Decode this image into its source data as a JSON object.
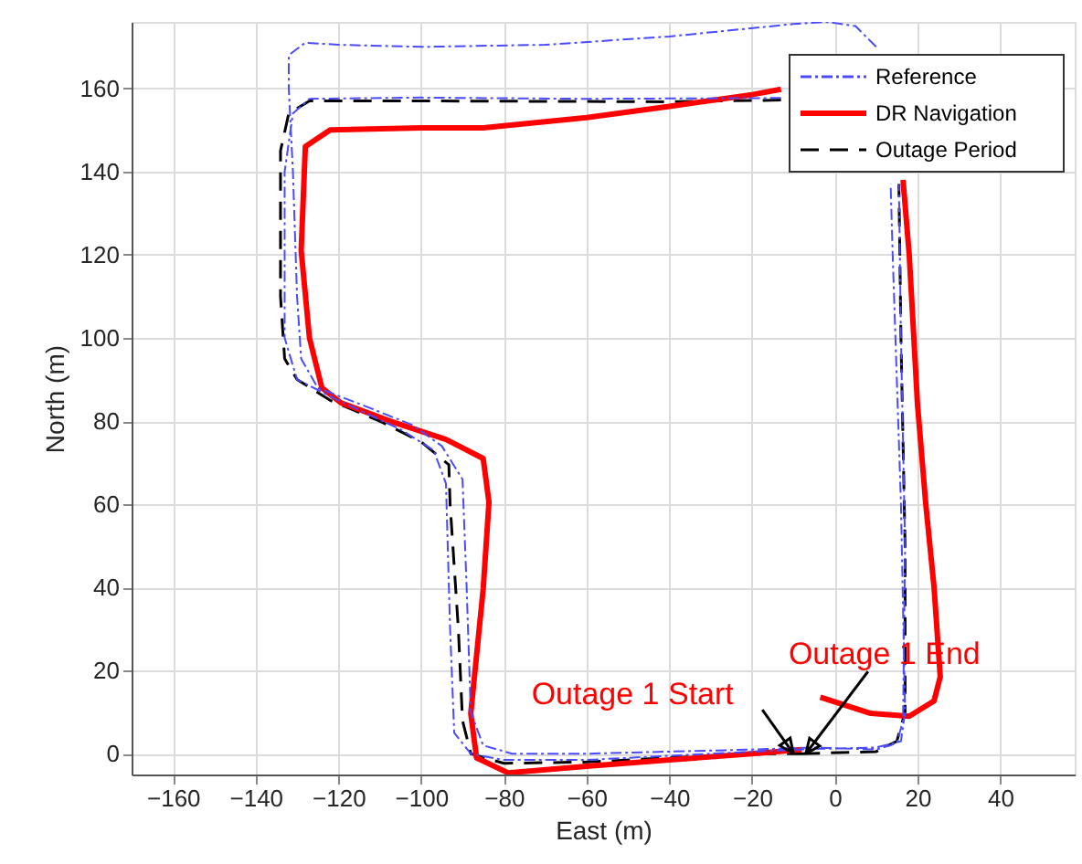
{
  "chart_data": {
    "type": "line",
    "xlabel": "East (m)",
    "ylabel": "North (m)",
    "xlim": [
      -170,
      58
    ],
    "ylim": [
      -5,
      176
    ],
    "xticks": [
      -160,
      -140,
      -120,
      -100,
      -80,
      -60,
      -40,
      -20,
      0,
      20,
      40
    ],
    "yticks": [
      0,
      20,
      40,
      60,
      80,
      100,
      120,
      140,
      160
    ],
    "grid": true,
    "legend": "top right",
    "marker": "none",
    "series": [
      {
        "name": "Reference",
        "color": "#4a4aff",
        "line_style": "dashdot",
        "x": [
          -10,
          10,
          16,
          17,
          16,
          14,
          13.5,
          12,
          10,
          5,
          -2,
          -10,
          -40,
          -70,
          -100,
          -120,
          -128,
          -132,
          -132,
          -131,
          -130,
          -129,
          -125,
          -112,
          -102,
          -95,
          -90,
          -89,
          -88,
          -85,
          -78,
          -60,
          -40,
          -20,
          -5,
          10,
          15,
          16.5,
          17,
          16,
          15.5,
          14,
          -13,
          -60,
          -100,
          -127,
          -131,
          -133,
          -133,
          -130,
          -120,
          -105,
          -97,
          -94,
          -93,
          -92,
          -88,
          -80,
          -60,
          -40,
          -20,
          -8
        ],
        "values": [
          1,
          1.5,
          3,
          10,
          60,
          120,
          137,
          null,
          170,
          175,
          176,
          175.5,
          172.5,
          170.5,
          170,
          170.5,
          171,
          168,
          160,
          140,
          110,
          95,
          88,
          83,
          79,
          74,
          66,
          40,
          10,
          2,
          0,
          0,
          0.5,
          1,
          1.5,
          1,
          2.5,
          8,
          50,
          100,
          137,
          null,
          157.7,
          157.5,
          157.8,
          157.5,
          154,
          140,
          100,
          90,
          85,
          78,
          73,
          65,
          30,
          5,
          0,
          -1.5,
          -1.5,
          -0.5,
          0.5,
          1
        ]
      },
      {
        "name": "DR Navigation",
        "color": "#ff0000",
        "line_style": "solid",
        "x": [
          -8,
          -20,
          -40,
          -60,
          -79,
          -86.6,
          -88,
          -85,
          -83.6,
          -85,
          -94,
          -107.5,
          -119.4,
          -124,
          -127,
          -129,
          -128,
          -122,
          -100,
          -85,
          -60,
          -40,
          -20,
          -13,
          5,
          14,
          15,
          16.5,
          18,
          20,
          22,
          24,
          25.5,
          24,
          18,
          8.7,
          -3.5
        ],
        "values": [
          1,
          0,
          -1.5,
          -3,
          -4.6,
          -1,
          9.7,
          39.6,
          60.5,
          71,
          75.6,
          80,
          84.4,
          88,
          100,
          121,
          146,
          150,
          150.5,
          150.5,
          153,
          155.7,
          158.5,
          159.8,
          null,
          null,
          null,
          138,
          120,
          84,
          60,
          40,
          18.5,
          12.7,
          9,
          9.7,
          13.6
        ]
      },
      {
        "name": "Outage Period",
        "color": "#000000",
        "line_style": "dashed",
        "x": [
          -8,
          10,
          15,
          17,
          17,
          16,
          15.5,
          14,
          -13,
          -40,
          -100,
          -127,
          -132,
          -134,
          -134,
          -133,
          -130,
          -122,
          -110,
          -100,
          -93.3,
          -93,
          -91,
          -90,
          -88,
          -80,
          -60,
          -40,
          -20,
          -8
        ],
        "values": [
          0,
          0.5,
          3,
          10,
          50,
          100,
          137,
          null,
          157.2,
          156.8,
          157,
          157,
          154,
          145,
          110,
          95,
          90,
          85,
          80,
          75,
          69.5,
          60,
          30,
          8,
          0,
          -2.3,
          -2,
          -1,
          0,
          0
        ]
      }
    ],
    "annotations": [
      {
        "text": "Outage 1 Start",
        "x": -10,
        "y": 0
      },
      {
        "text": "Outage 1 End",
        "x": -7,
        "y": 0
      }
    ]
  }
}
